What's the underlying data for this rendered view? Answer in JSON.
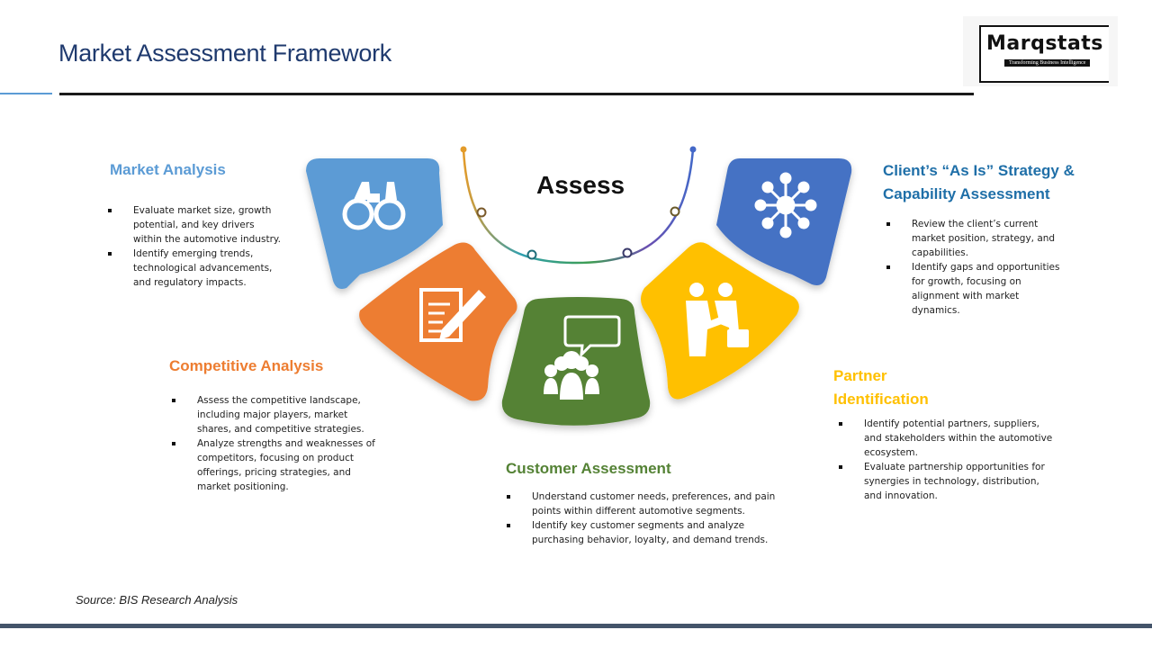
{
  "title": "Market Assessment Framework",
  "logo": {
    "name": "Marqstats",
    "tagline": "Transforming Business Intelligence"
  },
  "center_label": "Assess",
  "sections": {
    "market_analysis": {
      "title": "Market Analysis",
      "color": "#5b9bd5",
      "icon": "binoculars-icon",
      "points": [
        "Evaluate market size, growth potential, and key drivers within the automotive industry.",
        "Identify emerging trends, technological advancements, and regulatory impacts."
      ]
    },
    "competitive_analysis": {
      "title": "Competitive Analysis",
      "color": "#ed7d31",
      "icon": "document-pen-icon",
      "points": [
        "Assess the competitive landscape, including major players, market shares, and competitive strategies.",
        "Analyze strengths and weaknesses of competitors, focusing on product offerings, pricing strategies, and market positioning."
      ]
    },
    "customer_assessment": {
      "title": "Customer Assessment",
      "color": "#548235",
      "icon": "group-chat-icon",
      "points": [
        "Understand customer needs, preferences, and pain points within different automotive segments.",
        "Identify key customer segments and analyze purchasing behavior, loyalty, and demand trends."
      ]
    },
    "partner_identification": {
      "title": "Partner Identification",
      "title_lines": [
        "Partner",
        "Identification"
      ],
      "color": "#ffc000",
      "icon": "handshake-icon",
      "points": [
        "Identify potential partners, suppliers, and stakeholders within the automotive ecosystem.",
        "Evaluate partnership opportunities for synergies in technology, distribution, and innovation."
      ]
    },
    "client_strategy": {
      "title": "Client’s “As Is” Strategy & Capability Assessment",
      "title_lines": [
        "Client’s “As Is” Strategy &",
        "Capability Assessment"
      ],
      "color": "#4472c4",
      "icon": "network-hub-icon",
      "points": [
        "Review the client’s current market position, strategy, and capabilities.",
        "Identify gaps and opportunities for growth, focusing on alignment with market dynamics."
      ]
    }
  },
  "source": "Source: BIS Research Analysis"
}
